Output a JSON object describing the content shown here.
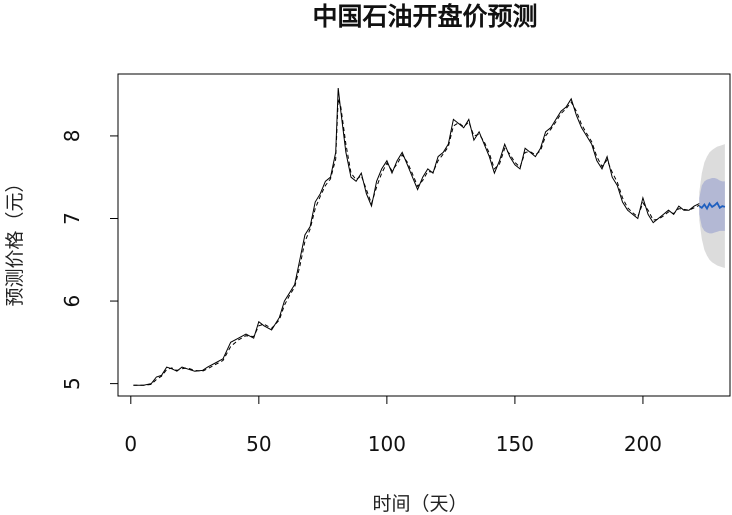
{
  "chart_data": {
    "type": "line",
    "title": "中国石油开盘价预测",
    "xlabel": "时间（天）",
    "ylabel": "预测价格（元）",
    "xlim": [
      -5,
      234
    ],
    "ylim": [
      4.85,
      8.75
    ],
    "xticks": [
      0,
      50,
      100,
      150,
      200
    ],
    "yticks": [
      5,
      6,
      7,
      8
    ],
    "grid": false,
    "series": [
      {
        "style": "solid",
        "color": "#000000",
        "points": [
          [
            1,
            4.98
          ],
          [
            5,
            4.98
          ],
          [
            8,
            5.0
          ],
          [
            10,
            5.08
          ],
          [
            12,
            5.1
          ],
          [
            14,
            5.2
          ],
          [
            16,
            5.18
          ],
          [
            18,
            5.15
          ],
          [
            20,
            5.2
          ],
          [
            22,
            5.18
          ],
          [
            25,
            5.15
          ],
          [
            28,
            5.16
          ],
          [
            30,
            5.2
          ],
          [
            33,
            5.25
          ],
          [
            36,
            5.3
          ],
          [
            39,
            5.5
          ],
          [
            42,
            5.55
          ],
          [
            45,
            5.6
          ],
          [
            48,
            5.55
          ],
          [
            50,
            5.75
          ],
          [
            52,
            5.7
          ],
          [
            55,
            5.65
          ],
          [
            58,
            5.8
          ],
          [
            60,
            6.0
          ],
          [
            62,
            6.1
          ],
          [
            64,
            6.2
          ],
          [
            66,
            6.5
          ],
          [
            68,
            6.8
          ],
          [
            70,
            6.9
          ],
          [
            72,
            7.2
          ],
          [
            74,
            7.3
          ],
          [
            76,
            7.45
          ],
          [
            78,
            7.5
          ],
          [
            80,
            7.8
          ],
          [
            81,
            8.58
          ],
          [
            82,
            8.3
          ],
          [
            84,
            7.8
          ],
          [
            86,
            7.5
          ],
          [
            88,
            7.45
          ],
          [
            90,
            7.55
          ],
          [
            92,
            7.3
          ],
          [
            94,
            7.15
          ],
          [
            96,
            7.45
          ],
          [
            98,
            7.6
          ],
          [
            100,
            7.7
          ],
          [
            102,
            7.55
          ],
          [
            104,
            7.7
          ],
          [
            106,
            7.8
          ],
          [
            108,
            7.65
          ],
          [
            110,
            7.5
          ],
          [
            112,
            7.35
          ],
          [
            114,
            7.5
          ],
          [
            116,
            7.6
          ],
          [
            118,
            7.55
          ],
          [
            120,
            7.75
          ],
          [
            122,
            7.8
          ],
          [
            124,
            7.9
          ],
          [
            126,
            8.2
          ],
          [
            128,
            8.15
          ],
          [
            130,
            8.1
          ],
          [
            132,
            8.2
          ],
          [
            134,
            7.95
          ],
          [
            136,
            8.05
          ],
          [
            138,
            7.9
          ],
          [
            140,
            7.75
          ],
          [
            142,
            7.55
          ],
          [
            144,
            7.7
          ],
          [
            146,
            7.9
          ],
          [
            148,
            7.75
          ],
          [
            150,
            7.65
          ],
          [
            152,
            7.6
          ],
          [
            154,
            7.85
          ],
          [
            156,
            7.8
          ],
          [
            158,
            7.75
          ],
          [
            160,
            7.85
          ],
          [
            162,
            8.05
          ],
          [
            164,
            8.1
          ],
          [
            166,
            8.2
          ],
          [
            168,
            8.3
          ],
          [
            170,
            8.35
          ],
          [
            172,
            8.45
          ],
          [
            174,
            8.25
          ],
          [
            176,
            8.1
          ],
          [
            178,
            8.0
          ],
          [
            180,
            7.9
          ],
          [
            182,
            7.7
          ],
          [
            184,
            7.6
          ],
          [
            186,
            7.75
          ],
          [
            188,
            7.5
          ],
          [
            190,
            7.4
          ],
          [
            192,
            7.2
          ],
          [
            194,
            7.1
          ],
          [
            196,
            7.05
          ],
          [
            198,
            7.0
          ],
          [
            200,
            7.25
          ],
          [
            202,
            7.05
          ],
          [
            204,
            6.95
          ],
          [
            206,
            7.0
          ],
          [
            208,
            7.05
          ],
          [
            210,
            7.1
          ],
          [
            212,
            7.05
          ],
          [
            214,
            7.15
          ],
          [
            216,
            7.1
          ],
          [
            218,
            7.1
          ],
          [
            220,
            7.15
          ],
          [
            222,
            7.18
          ]
        ]
      },
      {
        "style": "dashed",
        "color": "#000000",
        "points": [
          [
            1,
            4.98
          ],
          [
            5,
            4.98
          ],
          [
            8,
            4.99
          ],
          [
            10,
            5.05
          ],
          [
            12,
            5.09
          ],
          [
            14,
            5.17
          ],
          [
            16,
            5.19
          ],
          [
            18,
            5.16
          ],
          [
            20,
            5.18
          ],
          [
            22,
            5.19
          ],
          [
            25,
            5.16
          ],
          [
            28,
            5.15
          ],
          [
            30,
            5.18
          ],
          [
            33,
            5.23
          ],
          [
            36,
            5.28
          ],
          [
            39,
            5.45
          ],
          [
            42,
            5.53
          ],
          [
            45,
            5.58
          ],
          [
            48,
            5.57
          ],
          [
            50,
            5.7
          ],
          [
            52,
            5.72
          ],
          [
            55,
            5.67
          ],
          [
            58,
            5.77
          ],
          [
            60,
            5.95
          ],
          [
            62,
            6.07
          ],
          [
            64,
            6.17
          ],
          [
            66,
            6.42
          ],
          [
            68,
            6.72
          ],
          [
            70,
            6.87
          ],
          [
            72,
            7.12
          ],
          [
            74,
            7.27
          ],
          [
            76,
            7.4
          ],
          [
            78,
            7.48
          ],
          [
            80,
            7.72
          ],
          [
            81,
            8.45
          ],
          [
            82,
            8.35
          ],
          [
            84,
            7.9
          ],
          [
            86,
            7.55
          ],
          [
            88,
            7.47
          ],
          [
            90,
            7.52
          ],
          [
            92,
            7.35
          ],
          [
            94,
            7.18
          ],
          [
            96,
            7.38
          ],
          [
            98,
            7.55
          ],
          [
            100,
            7.67
          ],
          [
            102,
            7.58
          ],
          [
            104,
            7.66
          ],
          [
            106,
            7.77
          ],
          [
            108,
            7.68
          ],
          [
            110,
            7.54
          ],
          [
            112,
            7.39
          ],
          [
            114,
            7.46
          ],
          [
            116,
            7.57
          ],
          [
            118,
            7.56
          ],
          [
            120,
            7.7
          ],
          [
            122,
            7.78
          ],
          [
            124,
            7.87
          ],
          [
            126,
            8.12
          ],
          [
            128,
            8.16
          ],
          [
            130,
            8.11
          ],
          [
            132,
            8.17
          ],
          [
            134,
            8.0
          ],
          [
            136,
            8.02
          ],
          [
            138,
            7.93
          ],
          [
            140,
            7.79
          ],
          [
            142,
            7.6
          ],
          [
            144,
            7.66
          ],
          [
            146,
            7.85
          ],
          [
            148,
            7.78
          ],
          [
            150,
            7.68
          ],
          [
            152,
            7.62
          ],
          [
            154,
            7.8
          ],
          [
            156,
            7.81
          ],
          [
            158,
            7.77
          ],
          [
            160,
            7.82
          ],
          [
            162,
            8.0
          ],
          [
            164,
            8.08
          ],
          [
            166,
            8.17
          ],
          [
            168,
            8.27
          ],
          [
            170,
            8.33
          ],
          [
            172,
            8.41
          ],
          [
            174,
            8.3
          ],
          [
            176,
            8.14
          ],
          [
            178,
            8.03
          ],
          [
            180,
            7.93
          ],
          [
            182,
            7.75
          ],
          [
            184,
            7.63
          ],
          [
            186,
            7.71
          ],
          [
            188,
            7.56
          ],
          [
            190,
            7.44
          ],
          [
            192,
            7.25
          ],
          [
            194,
            7.13
          ],
          [
            196,
            7.07
          ],
          [
            198,
            7.02
          ],
          [
            200,
            7.19
          ],
          [
            202,
            7.1
          ],
          [
            204,
            6.98
          ],
          [
            206,
            6.99
          ],
          [
            208,
            7.03
          ],
          [
            210,
            7.08
          ],
          [
            212,
            7.06
          ],
          [
            214,
            7.12
          ],
          [
            216,
            7.11
          ],
          [
            218,
            7.1
          ],
          [
            220,
            7.13
          ],
          [
            222,
            7.16
          ]
        ]
      }
    ],
    "forecast": {
      "color": "#1f5fbf",
      "band80_color": "#b3b8d4",
      "band95_color": "#dcdcdc",
      "points": [
        [
          222,
          7.15
        ],
        [
          223,
          7.13
        ],
        [
          224,
          7.17
        ],
        [
          225,
          7.12
        ],
        [
          226,
          7.18
        ],
        [
          227,
          7.14
        ],
        [
          228,
          7.16
        ],
        [
          229,
          7.19
        ],
        [
          230,
          7.13
        ],
        [
          231,
          7.15
        ],
        [
          232,
          7.14
        ]
      ],
      "lower80": [
        7.05,
        6.9,
        6.85,
        6.83,
        6.82,
        6.82,
        6.83,
        6.84,
        6.85,
        6.85,
        6.85
      ],
      "upper80": [
        7.25,
        7.4,
        7.45,
        7.47,
        7.48,
        7.49,
        7.49,
        7.48,
        7.46,
        7.45,
        7.45
      ],
      "lower95": [
        6.98,
        6.75,
        6.62,
        6.55,
        6.5,
        6.47,
        6.45,
        6.43,
        6.42,
        6.41,
        6.4
      ],
      "upper95": [
        7.32,
        7.55,
        7.68,
        7.75,
        7.8,
        7.83,
        7.85,
        7.87,
        7.88,
        7.89,
        7.9
      ]
    }
  }
}
